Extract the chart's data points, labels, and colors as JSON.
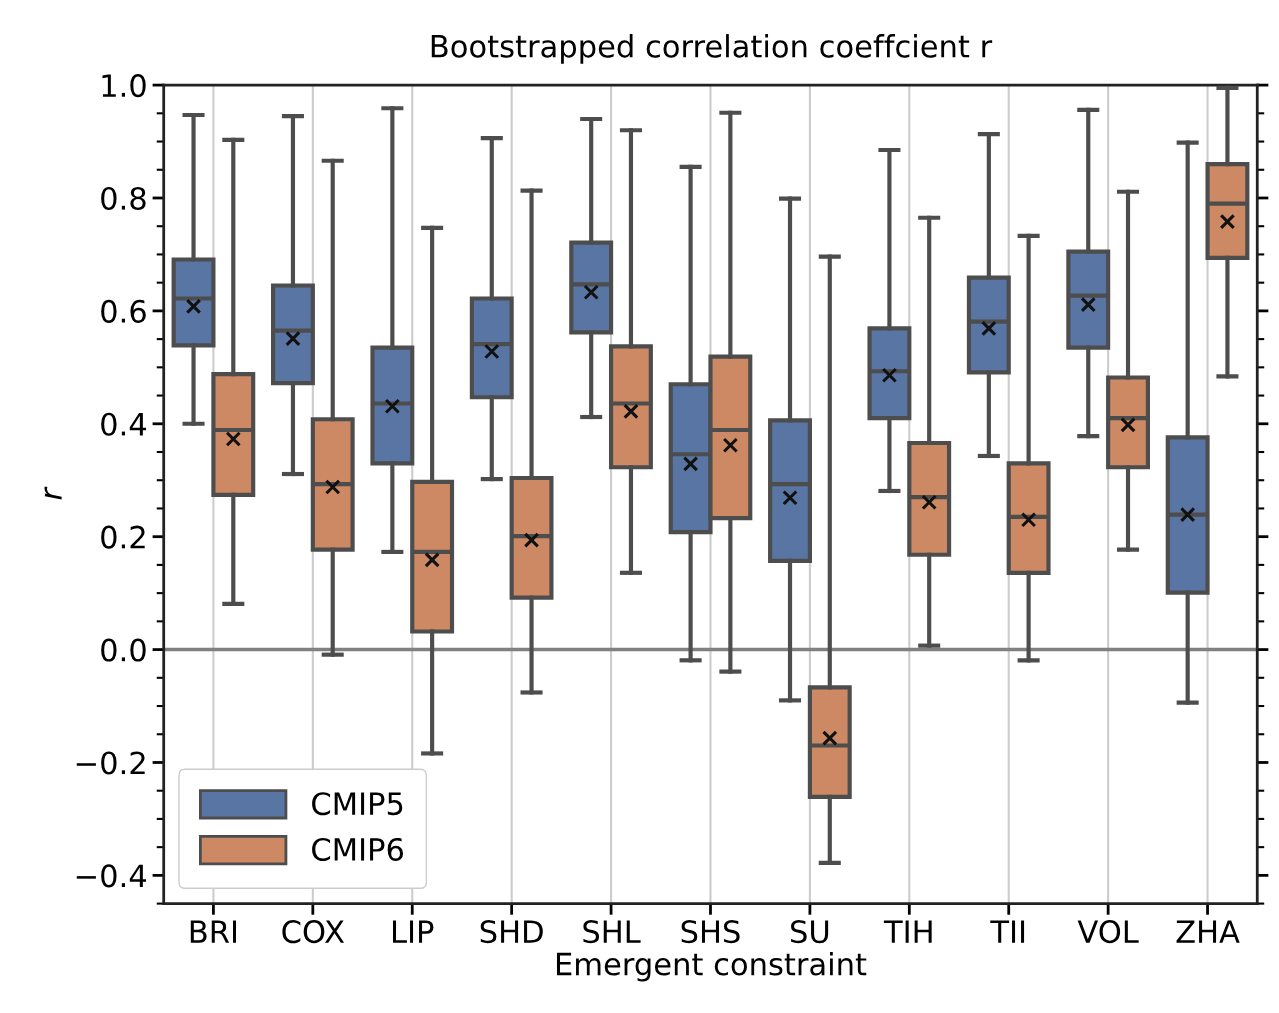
{
  "chart_data": {
    "type": "box",
    "title": "Bootstrapped correlation coeffcient r",
    "xlabel": "Emergent constraint",
    "ylabel": "r",
    "categories": [
      "BRI",
      "COX",
      "LIP",
      "SHD",
      "SHL",
      "SHS",
      "SU",
      "TIH",
      "TII",
      "VOL",
      "ZHA"
    ],
    "series": [
      {
        "name": "CMIP5",
        "color": "#5875a4",
        "boxes": [
          {
            "low": 0.4,
            "q1": 0.539,
            "median": 0.622,
            "q3": 0.691,
            "high": 0.947,
            "mean": 0.608
          },
          {
            "low": 0.311,
            "q1": 0.472,
            "median": 0.565,
            "q3": 0.645,
            "high": 0.945,
            "mean": 0.551
          },
          {
            "low": 0.173,
            "q1": 0.33,
            "median": 0.436,
            "q3": 0.535,
            "high": 0.959,
            "mean": 0.431
          },
          {
            "low": 0.302,
            "q1": 0.447,
            "median": 0.541,
            "q3": 0.622,
            "high": 0.906,
            "mean": 0.528
          },
          {
            "low": 0.412,
            "q1": 0.562,
            "median": 0.647,
            "q3": 0.721,
            "high": 0.94,
            "mean": 0.633
          },
          {
            "low": -0.019,
            "q1": 0.208,
            "median": 0.346,
            "q3": 0.47,
            "high": 0.855,
            "mean": 0.329
          },
          {
            "low": -0.09,
            "q1": 0.157,
            "median": 0.293,
            "q3": 0.406,
            "high": 0.799,
            "mean": 0.269
          },
          {
            "low": 0.281,
            "q1": 0.41,
            "median": 0.493,
            "q3": 0.569,
            "high": 0.885,
            "mean": 0.486
          },
          {
            "low": 0.343,
            "q1": 0.491,
            "median": 0.581,
            "q3": 0.659,
            "high": 0.913,
            "mean": 0.569
          },
          {
            "low": 0.378,
            "q1": 0.535,
            "median": 0.627,
            "q3": 0.705,
            "high": 0.956,
            "mean": 0.611
          },
          {
            "low": -0.094,
            "q1": 0.101,
            "median": 0.239,
            "q3": 0.376,
            "high": 0.898,
            "mean": 0.239
          }
        ]
      },
      {
        "name": "CMIP6",
        "color": "#cc8963",
        "boxes": [
          {
            "low": 0.081,
            "q1": 0.274,
            "median": 0.389,
            "q3": 0.488,
            "high": 0.903,
            "mean": 0.373
          },
          {
            "low": -0.009,
            "q1": 0.177,
            "median": 0.293,
            "q3": 0.408,
            "high": 0.866,
            "mean": 0.288
          },
          {
            "low": -0.184,
            "q1": 0.032,
            "median": 0.173,
            "q3": 0.297,
            "high": 0.747,
            "mean": 0.159
          },
          {
            "low": -0.076,
            "q1": 0.092,
            "median": 0.201,
            "q3": 0.304,
            "high": 0.813,
            "mean": 0.194
          },
          {
            "low": 0.136,
            "q1": 0.323,
            "median": 0.436,
            "q3": 0.537,
            "high": 0.92,
            "mean": 0.422
          },
          {
            "low": -0.039,
            "q1": 0.233,
            "median": 0.389,
            "q3": 0.519,
            "high": 0.951,
            "mean": 0.362
          },
          {
            "low": -0.378,
            "q1": -0.261,
            "median": -0.17,
            "q3": -0.067,
            "high": 0.696,
            "mean": -0.157
          },
          {
            "low": 0.007,
            "q1": 0.168,
            "median": 0.27,
            "q3": 0.366,
            "high": 0.765,
            "mean": 0.261
          },
          {
            "low": -0.019,
            "q1": 0.136,
            "median": 0.235,
            "q3": 0.33,
            "high": 0.733,
            "mean": 0.23
          },
          {
            "low": 0.177,
            "q1": 0.323,
            "median": 0.41,
            "q3": 0.482,
            "high": 0.811,
            "mean": 0.398
          },
          {
            "low": 0.484,
            "q1": 0.694,
            "median": 0.79,
            "q3": 0.86,
            "high": 0.995,
            "mean": 0.758
          }
        ]
      }
    ],
    "ylim": [
      -0.45,
      1.0
    ],
    "yticks": [
      {
        "value": -0.4,
        "label": "−0.4"
      },
      {
        "value": -0.2,
        "label": "−0.2"
      },
      {
        "value": 0.0,
        "label": "0.0"
      },
      {
        "value": 0.2,
        "label": "0.2"
      },
      {
        "value": 0.4,
        "label": "0.4"
      },
      {
        "value": 0.6,
        "label": "0.6"
      },
      {
        "value": 0.8,
        "label": "0.8"
      },
      {
        "value": 1.0,
        "label": "1.0"
      }
    ],
    "ref_lines": [
      {
        "axis": "y",
        "value": 0,
        "color": "#808080"
      }
    ],
    "grid": "x",
    "legend": "bottom left"
  }
}
